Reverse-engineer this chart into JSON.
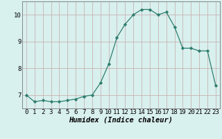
{
  "x": [
    0,
    1,
    2,
    3,
    4,
    5,
    6,
    7,
    8,
    9,
    10,
    11,
    12,
    13,
    14,
    15,
    16,
    17,
    18,
    19,
    20,
    21,
    22,
    23
  ],
  "y": [
    7.0,
    6.75,
    6.8,
    6.75,
    6.75,
    6.8,
    6.85,
    6.95,
    7.0,
    7.45,
    8.15,
    9.15,
    9.65,
    10.0,
    10.2,
    10.2,
    10.0,
    10.1,
    9.55,
    8.75,
    8.75,
    8.65,
    8.65,
    7.35
  ],
  "xlabel": "Humidex (Indice chaleur)",
  "ylim": [
    6.5,
    10.5
  ],
  "xlim": [
    -0.5,
    23.5
  ],
  "yticks": [
    7,
    8,
    9,
    10
  ],
  "xticks": [
    0,
    1,
    2,
    3,
    4,
    5,
    6,
    7,
    8,
    9,
    10,
    11,
    12,
    13,
    14,
    15,
    16,
    17,
    18,
    19,
    20,
    21,
    22,
    23
  ],
  "line_color": "#2d7d6d",
  "marker": "D",
  "marker_size": 2.2,
  "bg_color": "#d8f0ee",
  "grid_color": "#c4a8a8",
  "xlabel_fontsize": 7.5,
  "tick_fontsize": 6.5
}
